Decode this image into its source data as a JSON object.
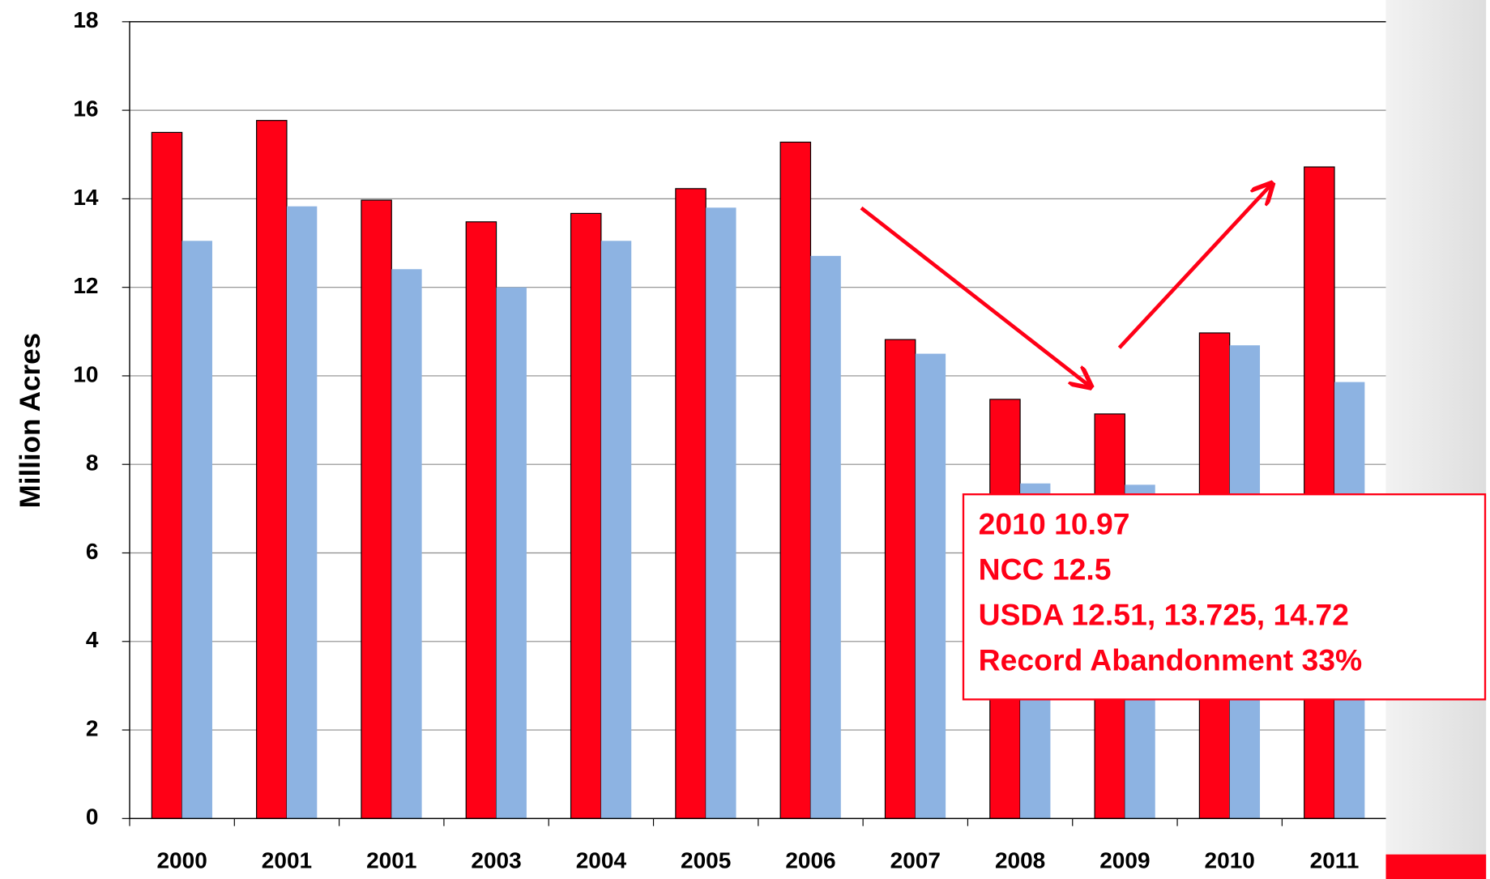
{
  "chart_data": {
    "type": "bar",
    "y_label": "Million Acres",
    "categories": [
      "2000",
      "2001",
      "2001",
      "2003",
      "2004",
      "2005",
      "2006",
      "2007",
      "2008",
      "2009",
      "2010",
      "2011"
    ],
    "series": [
      {
        "color": "#ff0016",
        "values": [
          15.5,
          15.77,
          13.97,
          13.48,
          13.67,
          14.23,
          15.28,
          10.82,
          9.47,
          9.14,
          10.97,
          14.72
        ]
      },
      {
        "color": "#8db3e2",
        "values": [
          13.05,
          13.83,
          12.41,
          12.0,
          13.05,
          13.8,
          12.71,
          10.5,
          7.57,
          7.54,
          10.69,
          9.86
        ]
      }
    ],
    "ylim": [
      0,
      18
    ],
    "yticks": [
      0,
      2,
      4,
      6,
      8,
      10,
      12,
      14,
      16,
      18
    ],
    "grid": true,
    "annotations": [
      "2010  10.97",
      "NCC  12.5",
      "USDA  12.51, 13.725, 14.72",
      "Record Abandonment 33%"
    ]
  }
}
